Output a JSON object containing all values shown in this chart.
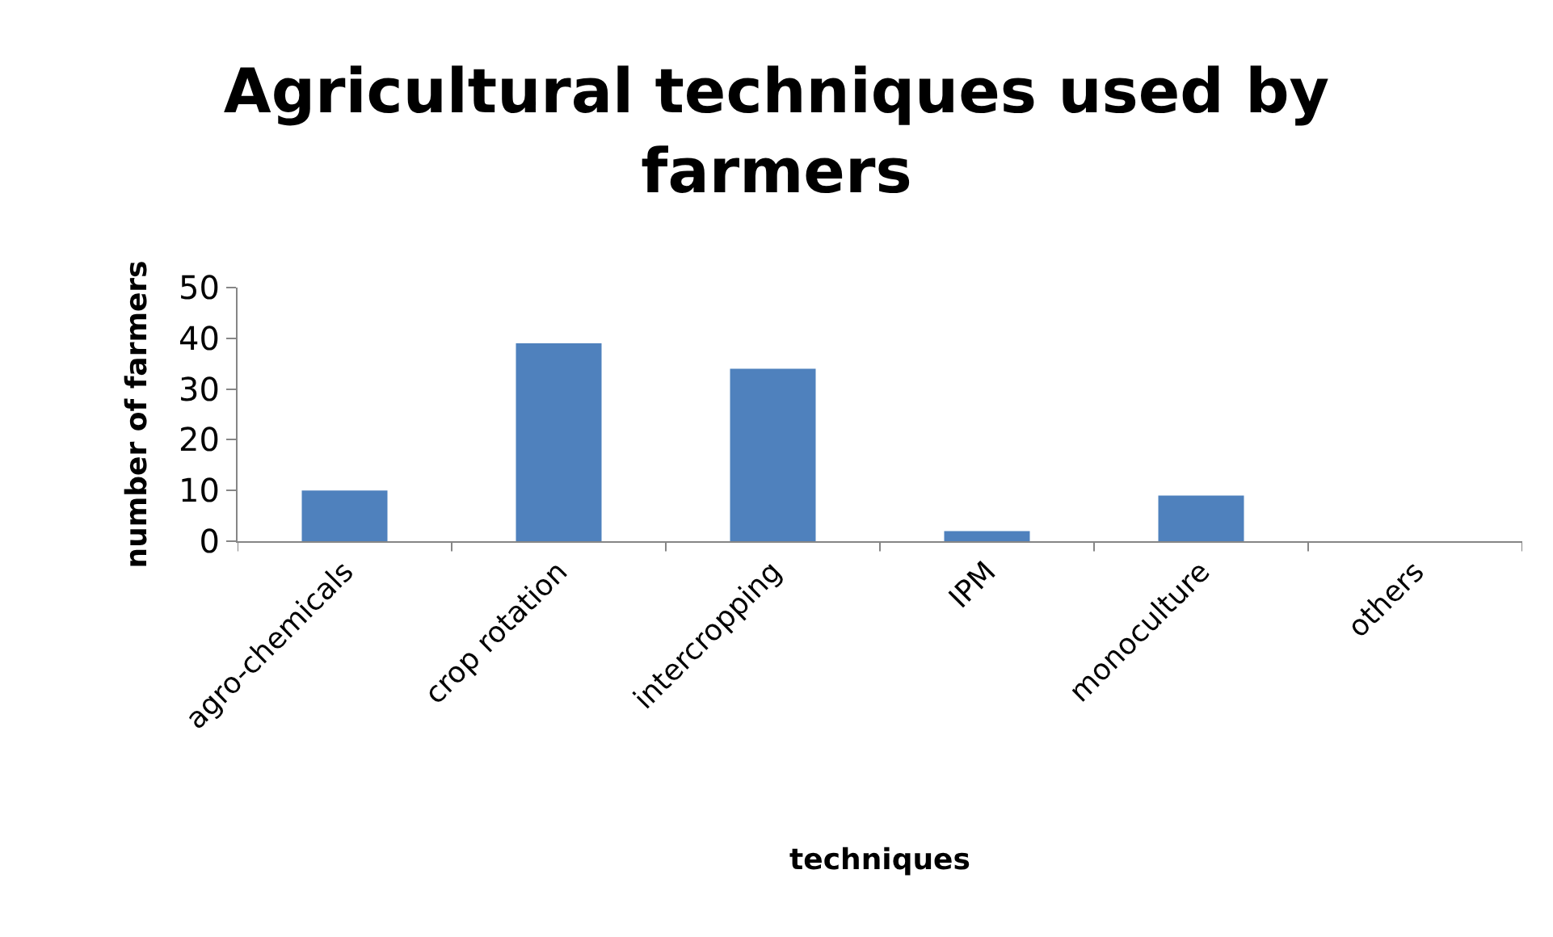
{
  "chart_data": {
    "type": "bar",
    "title": "Agricultural techniques used by farmers",
    "xlabel": "techniques",
    "ylabel": "number of farmers",
    "categories": [
      "agro-chemicals",
      "crop rotation",
      "intercropping",
      "IPM",
      "monoculture",
      "others"
    ],
    "values": [
      10,
      39,
      34,
      2,
      9,
      0
    ],
    "color": "#4f81bd",
    "ylim": [
      0,
      50
    ],
    "yticks": [
      0,
      10,
      20,
      30,
      40,
      50
    ]
  }
}
